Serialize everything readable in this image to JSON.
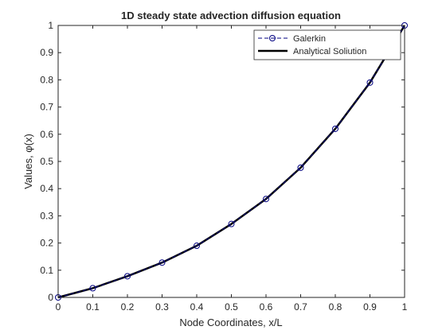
{
  "chart_data": {
    "type": "line",
    "title": "1D steady state advection diffusion equation",
    "xlabel": "Node Coordinates, x/L",
    "ylabel": "Values, φ(x)",
    "xlim": [
      0,
      1
    ],
    "ylim": [
      0,
      1
    ],
    "xticks": [
      0,
      0.1,
      0.2,
      0.3,
      0.4,
      0.5,
      0.6,
      0.7,
      0.8,
      0.9,
      1
    ],
    "xtick_labels": [
      "0",
      "0.1",
      "0.2",
      "0.3",
      "0.4",
      "0.5",
      "0.6",
      "0.7",
      "0.8",
      "0.9",
      "1"
    ],
    "yticks": [
      0,
      0.1,
      0.2,
      0.3,
      0.4,
      0.5,
      0.6,
      0.7,
      0.8,
      0.9,
      1
    ],
    "ytick_labels": [
      "0",
      "0.1",
      "0.2",
      "0.3",
      "0.4",
      "0.5",
      "0.6",
      "0.7",
      "0.8",
      "0.9",
      "1"
    ],
    "grid": false,
    "legend_position": "top-right",
    "series": [
      {
        "name": "Galerkin",
        "style": "dashed-circle-markers",
        "color": "#000080",
        "x": [
          0,
          0.1,
          0.2,
          0.3,
          0.4,
          0.5,
          0.6,
          0.7,
          0.8,
          0.9,
          1
        ],
        "y": [
          0,
          0.034,
          0.078,
          0.128,
          0.19,
          0.27,
          0.362,
          0.477,
          0.62,
          0.79,
          1
        ]
      },
      {
        "name": "Analytical Soliution",
        "style": "solid-thick",
        "color": "#000000",
        "x": [
          0,
          0.1,
          0.2,
          0.3,
          0.4,
          0.5,
          0.6,
          0.7,
          0.8,
          0.9,
          1
        ],
        "y": [
          0,
          0.034,
          0.078,
          0.128,
          0.19,
          0.27,
          0.362,
          0.477,
          0.62,
          0.79,
          1
        ]
      }
    ]
  }
}
